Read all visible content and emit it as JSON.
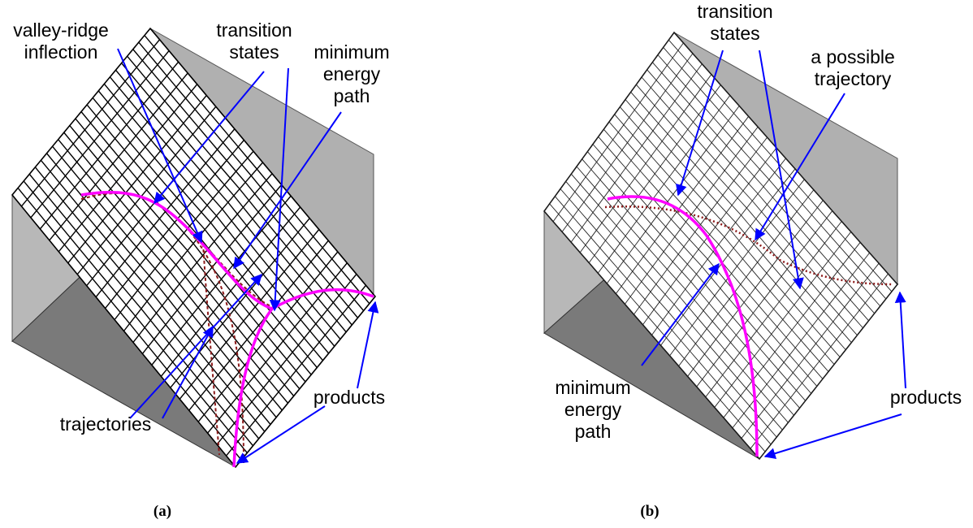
{
  "panels": [
    {
      "caption": "(a)",
      "labels": [
        {
          "lines": [
            "valley-ridge",
            "inflection"
          ]
        },
        {
          "lines": [
            "transition",
            "states"
          ]
        },
        {
          "lines": [
            "minimum",
            "energy",
            "path"
          ]
        },
        {
          "lines": [
            "trajectories"
          ]
        },
        {
          "lines": [
            "products"
          ]
        }
      ]
    },
    {
      "caption": "(b)",
      "labels": [
        {
          "lines": [
            "transition",
            "states"
          ]
        },
        {
          "lines": [
            "a possible",
            "trajectory"
          ]
        },
        {
          "lines": [
            "minimum",
            "energy",
            "path"
          ]
        },
        {
          "lines": [
            "products"
          ]
        }
      ]
    }
  ]
}
